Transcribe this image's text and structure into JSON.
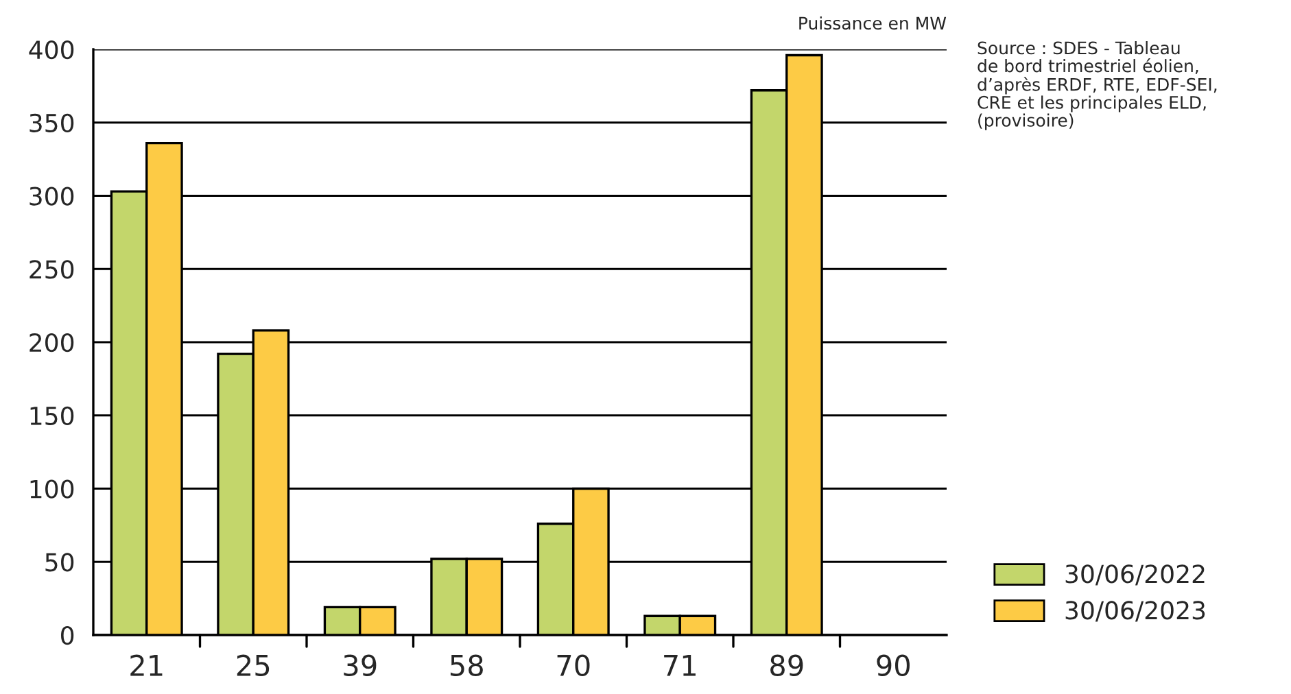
{
  "chart_data": {
    "type": "bar",
    "categories": [
      "21",
      "25",
      "39",
      "58",
      "70",
      "71",
      "89",
      "90"
    ],
    "series": [
      {
        "name": "30/06/2022",
        "color": "#c3d66b",
        "values": [
          303,
          192,
          19,
          52,
          76,
          13,
          372,
          null
        ]
      },
      {
        "name": "30/06/2023",
        "color": "#fdcb45",
        "values": [
          336,
          208,
          19,
          52,
          100,
          13,
          396,
          null
        ]
      }
    ],
    "ylim": [
      0,
      400
    ],
    "yticks": [
      0,
      50,
      100,
      150,
      200,
      250,
      300,
      350,
      400
    ],
    "grid": "y",
    "legend": "bottom right",
    "annotations": [
      "Puissance en MW",
      "Source : SDES - Tableau\nde bord trimestriel éolien,\nd’après ERDF, RTE, EDF-SEI,\nCRE et les principales ELD,\n(provisoire)"
    ]
  }
}
